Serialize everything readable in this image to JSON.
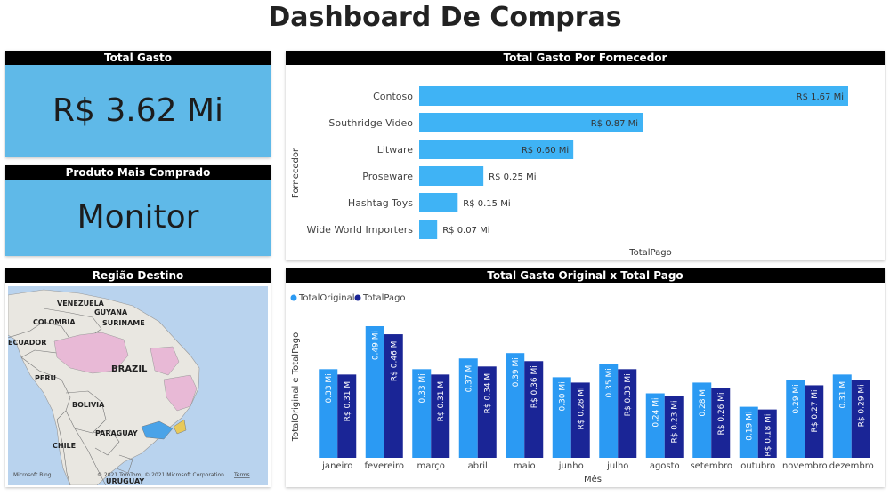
{
  "dashboard_title": "Dashboard De Compras",
  "kpi_total": {
    "title": "Total Gasto",
    "value": "R$ 3.62 Mi"
  },
  "kpi_product": {
    "title": "Produto Mais Comprado",
    "value": "Monitor"
  },
  "map": {
    "title": "Região Destino",
    "labels": [
      "VENEZUELA",
      "GUYANA",
      "COLOMBIA",
      "SURINAME",
      "ECUADOR",
      "BRAZIL",
      "PERU",
      "BOLIVIA",
      "PARAGUAY",
      "CHILE",
      "URUGUAY"
    ],
    "attribution": "© 2021 TomTom, © 2021 Microsoft Corporation",
    "terms": "Terms",
    "logo": "Microsoft Bing",
    "colors": {
      "water": "#b9d3ee",
      "land": "#e9e7e1",
      "highlight_pink": "#e8b9d6",
      "highlight_blue": "#4aa3e8",
      "highlight_yellow": "#e8c95a"
    }
  },
  "chart_data": [
    {
      "type": "bar",
      "orientation": "horizontal",
      "title": "Total Gasto Por Fornecedor",
      "ylabel": "Fornecedor",
      "xlabel": "TotalPago",
      "categories": [
        "Contoso",
        "Southridge Video",
        "Litware",
        "Proseware",
        "Hashtag Toys",
        "Wide World Importers"
      ],
      "values": [
        1.67,
        0.87,
        0.6,
        0.25,
        0.15,
        0.07
      ],
      "data_labels": [
        "R$ 1.67 Mi",
        "R$ 0.87 Mi",
        "R$ 0.60 Mi",
        "R$ 0.25 Mi",
        "R$ 0.15 Mi",
        "R$ 0.07 Mi"
      ],
      "xlim": [
        0,
        1.67
      ],
      "color": "#3fb3f5"
    },
    {
      "type": "bar",
      "orientation": "vertical",
      "title": "Total Gasto Original x Total Pago",
      "xlabel": "Mês",
      "ylabel": "TotalOriginal e TotalPago",
      "legend_position": "top-left",
      "categories": [
        "janeiro",
        "fevereiro",
        "março",
        "abril",
        "maio",
        "junho",
        "julho",
        "agosto",
        "setembro",
        "outubro",
        "novembro",
        "dezembro"
      ],
      "series": [
        {
          "name": "TotalOriginal",
          "color": "#2b9af3",
          "values": [
            0.33,
            0.49,
            0.33,
            0.37,
            0.39,
            0.3,
            0.35,
            0.24,
            0.28,
            0.19,
            0.29,
            0.31
          ],
          "labels": [
            "0.33 Mi",
            "0.49 Mi",
            "0.33 Mi",
            "0.37 Mi",
            "0.39 Mi",
            "0.30 Mi",
            "0.35 Mi",
            "0.24 Mi",
            "0.28 Mi",
            "0.19 Mi",
            "0.29 Mi",
            "0.31 Mi"
          ]
        },
        {
          "name": "TotalPago",
          "color": "#1a2596",
          "values": [
            0.31,
            0.46,
            0.31,
            0.34,
            0.36,
            0.28,
            0.33,
            0.23,
            0.26,
            0.18,
            0.27,
            0.29
          ],
          "labels": [
            "R$ 0.31 Mi",
            "R$ 0.46 Mi",
            "R$ 0.31 Mi",
            "R$ 0.34 Mi",
            "R$ 0.36 Mi",
            "R$ 0.28 Mi",
            "R$ 0.33 Mi",
            "R$ 0.23 Mi",
            "R$ 0.26 Mi",
            "R$ 0.18 Mi",
            "R$ 0.27 Mi",
            "R$ 0.29 Mi"
          ]
        }
      ],
      "ylim": [
        0,
        0.49
      ]
    }
  ]
}
